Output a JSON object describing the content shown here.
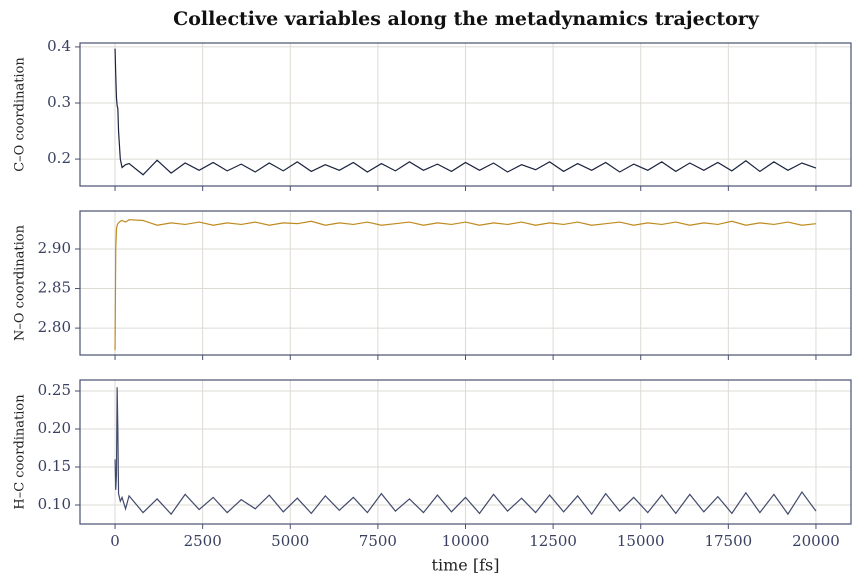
{
  "title": "Collective variables along the metadynamics trajectory",
  "chart_data": [
    {
      "type": "line",
      "ylabel": "C–O coordination",
      "color": "#1b2340",
      "grid": true,
      "xlim": [
        -1000,
        21000
      ],
      "xticks": [
        0,
        2500,
        5000,
        7500,
        10000,
        12500,
        15000,
        17500,
        20000
      ],
      "ylim": [
        0.152,
        0.407
      ],
      "yticks": [
        0.2,
        0.3,
        0.4
      ],
      "x": [
        0,
        20,
        40,
        60,
        80,
        100,
        150,
        200,
        300,
        400,
        800,
        1200,
        1600,
        2000,
        2400,
        2800,
        3200,
        3600,
        4000,
        4400,
        4800,
        5200,
        5600,
        6000,
        6400,
        6800,
        7200,
        7600,
        8000,
        8400,
        8800,
        9200,
        9600,
        10000,
        10400,
        10800,
        11200,
        11600,
        12000,
        12400,
        12800,
        13200,
        13600,
        14000,
        14400,
        14800,
        15200,
        15600,
        16000,
        16400,
        16800,
        17200,
        17600,
        18000,
        18400,
        18800,
        19200,
        19600,
        20000
      ],
      "values": [
        0.397,
        0.35,
        0.31,
        0.295,
        0.29,
        0.25,
        0.2,
        0.185,
        0.19,
        0.192,
        0.172,
        0.198,
        0.175,
        0.193,
        0.18,
        0.194,
        0.179,
        0.191,
        0.177,
        0.193,
        0.179,
        0.195,
        0.178,
        0.19,
        0.18,
        0.194,
        0.177,
        0.192,
        0.179,
        0.195,
        0.18,
        0.191,
        0.178,
        0.194,
        0.18,
        0.193,
        0.177,
        0.19,
        0.181,
        0.195,
        0.178,
        0.192,
        0.18,
        0.194,
        0.177,
        0.191,
        0.18,
        0.195,
        0.178,
        0.193,
        0.18,
        0.194,
        0.179,
        0.197,
        0.178,
        0.195,
        0.18,
        0.193,
        0.184
      ]
    },
    {
      "type": "line",
      "ylabel": "N–O coordination",
      "color": "#c08a1e",
      "grid": true,
      "xlim": [
        -1000,
        21000
      ],
      "xticks": [
        0,
        2500,
        5000,
        7500,
        10000,
        12500,
        15000,
        17500,
        20000
      ],
      "ylim": [
        2.766,
        2.948
      ],
      "yticks": [
        {
          "value": 2.8,
          "label": "2.80"
        },
        {
          "value": 2.85,
          "label": "2.85"
        },
        {
          "value": 2.9,
          "label": "2.90"
        }
      ],
      "x": [
        0,
        20,
        40,
        60,
        80,
        100,
        150,
        200,
        300,
        400,
        800,
        1200,
        1600,
        2000,
        2400,
        2800,
        3200,
        3600,
        4000,
        4400,
        4800,
        5200,
        5600,
        6000,
        6400,
        6800,
        7200,
        7600,
        8000,
        8400,
        8800,
        9200,
        9600,
        10000,
        10400,
        10800,
        11200,
        11600,
        12000,
        12400,
        12800,
        13200,
        13600,
        14000,
        14400,
        14800,
        15200,
        15600,
        16000,
        16400,
        16800,
        17200,
        17600,
        18000,
        18400,
        18800,
        19200,
        19600,
        20000
      ],
      "values": [
        2.772,
        2.9,
        2.925,
        2.93,
        2.932,
        2.933,
        2.935,
        2.936,
        2.934,
        2.937,
        2.936,
        2.93,
        2.933,
        2.931,
        2.934,
        2.93,
        2.933,
        2.931,
        2.934,
        2.93,
        2.933,
        2.932,
        2.935,
        2.93,
        2.933,
        2.931,
        2.934,
        2.93,
        2.932,
        2.934,
        2.93,
        2.933,
        2.931,
        2.934,
        2.93,
        2.933,
        2.931,
        2.934,
        2.93,
        2.933,
        2.931,
        2.934,
        2.93,
        2.932,
        2.934,
        2.93,
        2.933,
        2.931,
        2.934,
        2.93,
        2.933,
        2.931,
        2.935,
        2.93,
        2.933,
        2.931,
        2.934,
        2.93,
        2.932
      ]
    },
    {
      "type": "line",
      "ylabel": "H–C coordination",
      "color": "#414a6a",
      "grid": true,
      "xlabel": "time  [fs]",
      "xlim": [
        -1000,
        21000
      ],
      "xticks": [
        0,
        2500,
        5000,
        7500,
        10000,
        12500,
        15000,
        17500,
        20000
      ],
      "ylim": [
        0.075,
        0.2645
      ],
      "yticks": [
        {
          "value": 0.1,
          "label": "0.10"
        },
        {
          "value": 0.15,
          "label": "0.15"
        },
        {
          "value": 0.2,
          "label": "0.20"
        },
        {
          "value": 0.25,
          "label": "0.25"
        }
      ],
      "x": [
        0,
        20,
        40,
        60,
        80,
        100,
        150,
        200,
        300,
        400,
        800,
        1200,
        1600,
        2000,
        2400,
        2800,
        3200,
        3600,
        4000,
        4400,
        4800,
        5200,
        5600,
        6000,
        6400,
        6800,
        7200,
        7600,
        8000,
        8400,
        8800,
        9200,
        9600,
        10000,
        10400,
        10800,
        11200,
        11600,
        12000,
        12400,
        12800,
        13200,
        13600,
        14000,
        14400,
        14800,
        15200,
        15600,
        16000,
        16400,
        16800,
        17200,
        17600,
        18000,
        18400,
        18800,
        19200,
        19600,
        20000
      ],
      "values": [
        0.16,
        0.12,
        0.14,
        0.255,
        0.2,
        0.115,
        0.105,
        0.11,
        0.095,
        0.112,
        0.09,
        0.108,
        0.088,
        0.114,
        0.094,
        0.11,
        0.09,
        0.107,
        0.095,
        0.113,
        0.091,
        0.109,
        0.089,
        0.112,
        0.093,
        0.11,
        0.09,
        0.115,
        0.092,
        0.108,
        0.09,
        0.113,
        0.091,
        0.11,
        0.089,
        0.114,
        0.092,
        0.109,
        0.09,
        0.113,
        0.091,
        0.112,
        0.088,
        0.115,
        0.092,
        0.11,
        0.09,
        0.113,
        0.089,
        0.114,
        0.091,
        0.111,
        0.089,
        0.116,
        0.09,
        0.114,
        0.088,
        0.117,
        0.092
      ]
    }
  ]
}
